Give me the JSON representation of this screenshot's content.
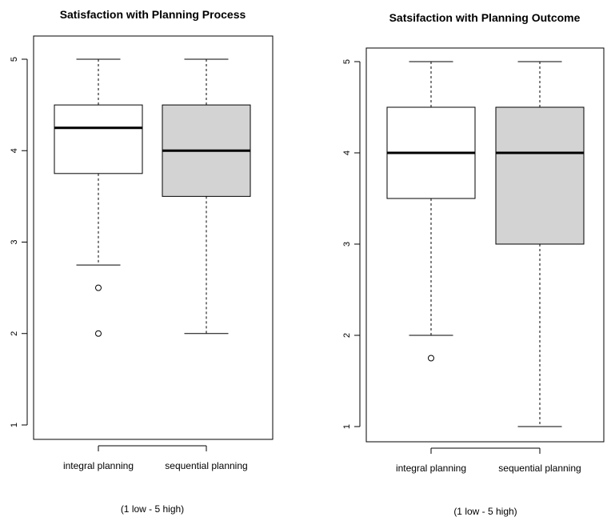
{
  "chart_data": [
    {
      "type": "box",
      "title": "Satisfaction with Planning Process",
      "xlabel": "",
      "ylabel": "",
      "note": "(1 low - 5 high)",
      "ylim": [
        1,
        5
      ],
      "y_ticks": [
        "1",
        "2",
        "3",
        "4",
        "5"
      ],
      "series": [
        {
          "name": "integral planning",
          "min": 2.75,
          "q1": 3.75,
          "median": 4.25,
          "q3": 4.5,
          "max": 5,
          "outliers": [
            2.5,
            2.0
          ],
          "fill": "#ffffff"
        },
        {
          "name": "sequential planning",
          "min": 2.0,
          "q1": 3.5,
          "median": 4.0,
          "q3": 4.5,
          "max": 5,
          "outliers": [],
          "fill": "#d3d3d3"
        }
      ]
    },
    {
      "type": "box",
      "title": "Satsifaction with Planning Outcome",
      "xlabel": "",
      "ylabel": "",
      "note": "(1 low - 5 high)",
      "ylim": [
        1,
        5
      ],
      "y_ticks": [
        "1",
        "2",
        "3",
        "4",
        "5"
      ],
      "series": [
        {
          "name": "integral planning",
          "min": 2.0,
          "q1": 3.5,
          "median": 4.0,
          "q3": 4.5,
          "max": 5,
          "outliers": [
            1.75
          ],
          "fill": "#ffffff"
        },
        {
          "name": "sequential planning",
          "min": 1.0,
          "q1": 3.0,
          "median": 4.0,
          "q3": 4.5,
          "max": 5,
          "outliers": [],
          "fill": "#d3d3d3"
        }
      ]
    }
  ]
}
